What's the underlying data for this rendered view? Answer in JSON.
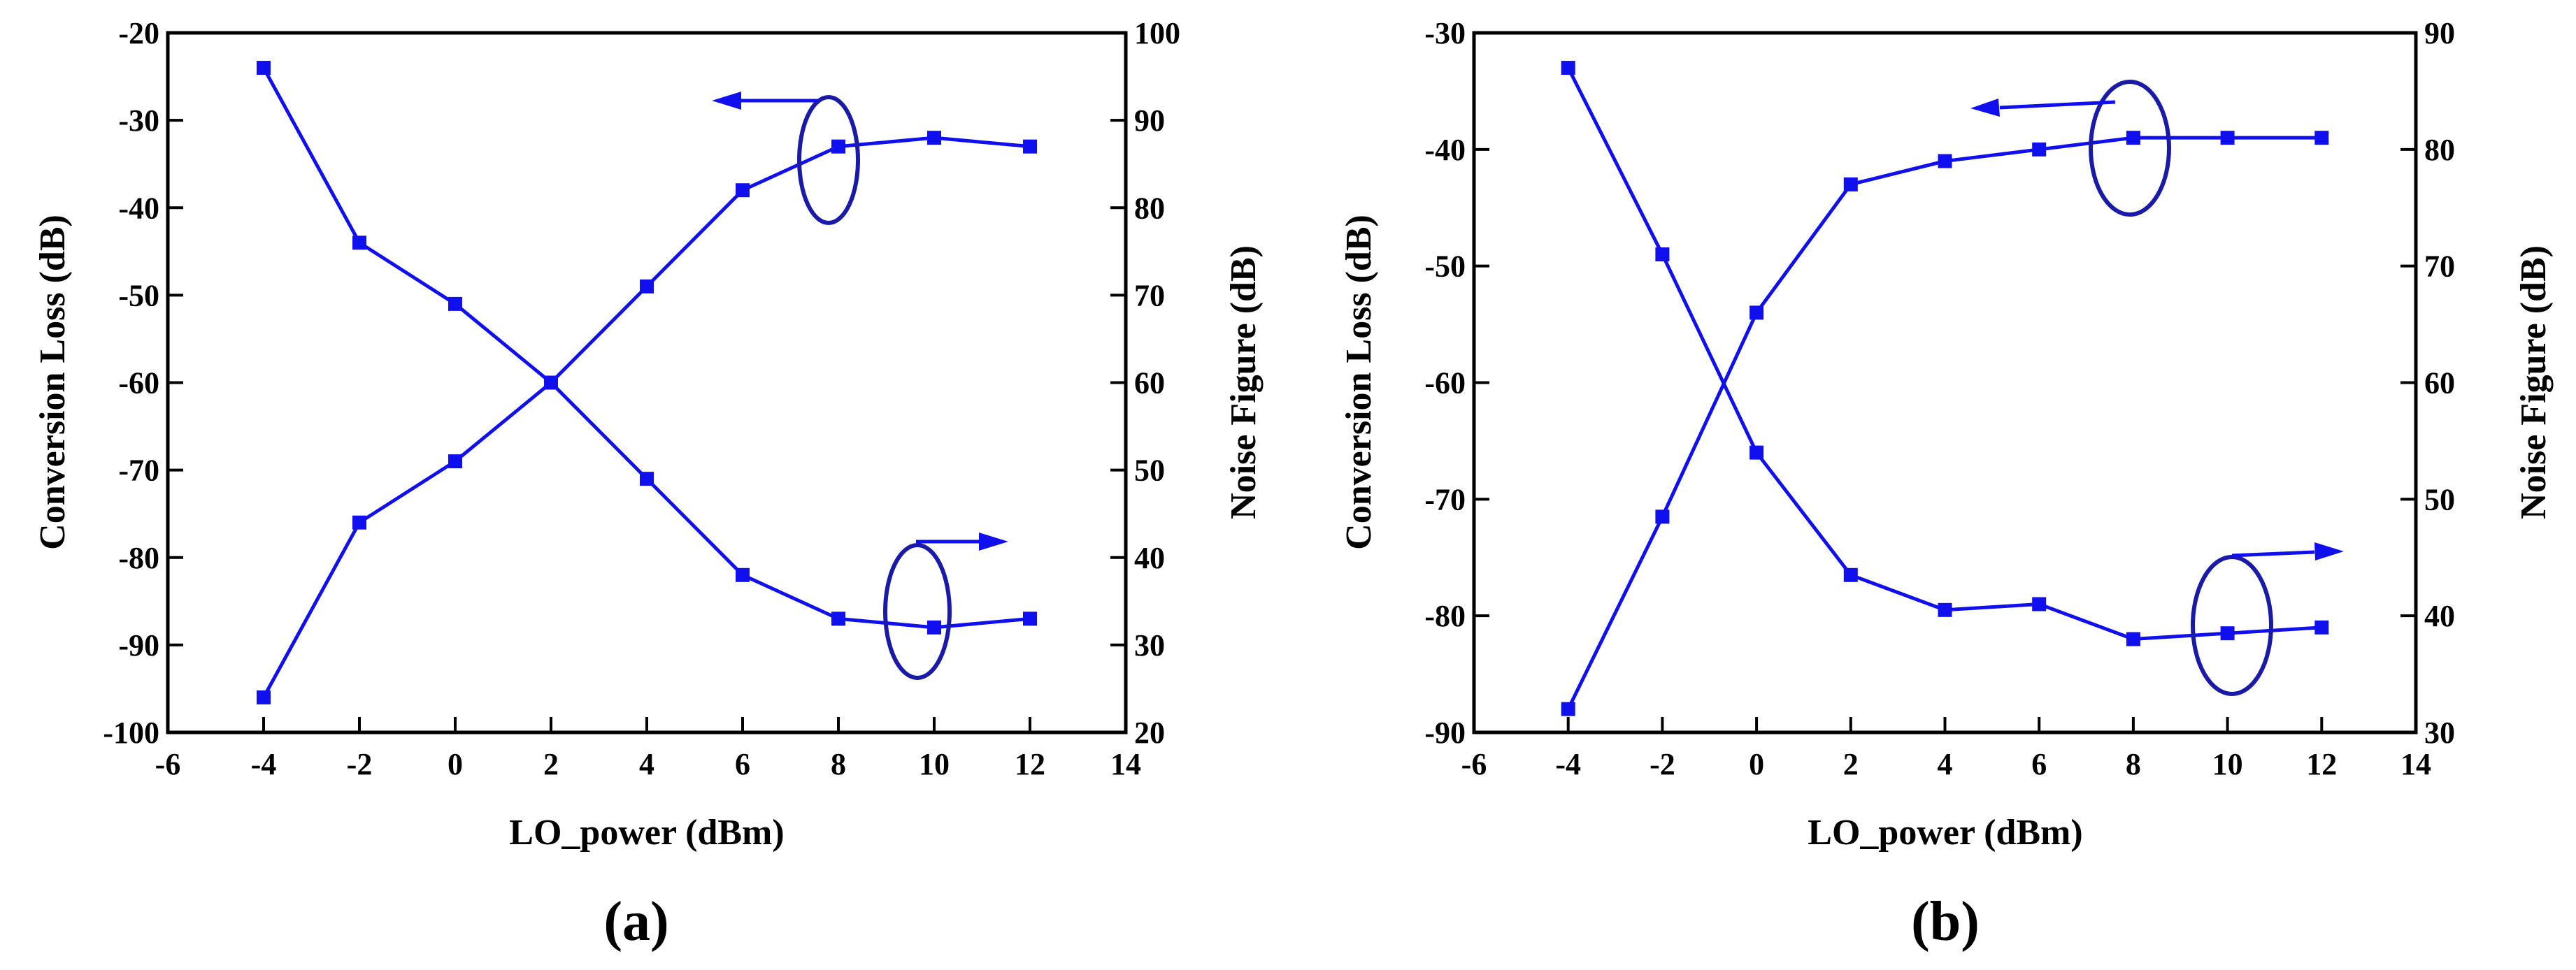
{
  "colors": {
    "series": "#1010ee",
    "annotation": "#1010ee",
    "ellipse": "#1a1aa8",
    "axis": "#000000"
  },
  "chart_data": [
    {
      "panel_label_open": "(",
      "panel_label_letter": "a",
      "panel_label_close": ")",
      "type": "line",
      "xlabel": "LO_power (dBm)",
      "ylabel_left": "Conversion Loss (dB)",
      "ylabel_right": "Noise Figure (dB)",
      "xlim": [
        -6,
        14
      ],
      "xticks": [
        -6,
        -4,
        -2,
        0,
        2,
        4,
        6,
        8,
        10,
        12,
        14
      ],
      "ylim_left": [
        -100,
        -20
      ],
      "yticks_left": [
        -100,
        -90,
        -80,
        -70,
        -60,
        -50,
        -40,
        -30,
        -20
      ],
      "ylim_right": [
        20,
        100
      ],
      "yticks_right": [
        20,
        30,
        40,
        50,
        60,
        70,
        80,
        90,
        100
      ],
      "grid": false,
      "series": [
        {
          "axis": "left",
          "x": [
            -4,
            -2,
            0,
            2,
            4,
            6,
            8,
            10,
            12
          ],
          "values": [
            -96,
            -76,
            -69,
            -60,
            -49,
            -38,
            -33,
            -32,
            -33
          ]
        },
        {
          "axis": "right",
          "x": [
            -4,
            -2,
            0,
            2,
            4,
            6,
            8,
            10,
            12
          ],
          "values": [
            96,
            76,
            69,
            60,
            49,
            38,
            33,
            32,
            33
          ]
        }
      ]
    },
    {
      "panel_label_open": "(",
      "panel_label_letter": "b",
      "panel_label_close": ")",
      "type": "line",
      "xlabel": "LO_power (dBm)",
      "ylabel_left": "Conversion Loss (dB)",
      "ylabel_right": "Noise Figure (dB)",
      "xlim": [
        -6,
        14
      ],
      "xticks": [
        -6,
        -4,
        -2,
        0,
        2,
        4,
        6,
        8,
        10,
        12,
        14
      ],
      "ylim_left": [
        -90,
        -30
      ],
      "yticks_left": [
        -90,
        -80,
        -70,
        -60,
        -50,
        -40,
        -30
      ],
      "ylim_right": [
        30,
        90
      ],
      "yticks_right": [
        30,
        40,
        50,
        60,
        70,
        80,
        90
      ],
      "grid": false,
      "series": [
        {
          "axis": "left",
          "x": [
            -4,
            -2,
            0,
            2,
            4,
            6,
            8,
            10,
            12
          ],
          "values": [
            -88,
            -71.5,
            -54,
            -43,
            -41,
            -40,
            -39,
            -39,
            -39
          ]
        },
        {
          "axis": "right",
          "x": [
            -4,
            -2,
            0,
            2,
            4,
            6,
            8,
            10,
            12
          ],
          "values": [
            87,
            71,
            54,
            43.5,
            40.5,
            41,
            38,
            38.5,
            39
          ]
        }
      ]
    }
  ]
}
